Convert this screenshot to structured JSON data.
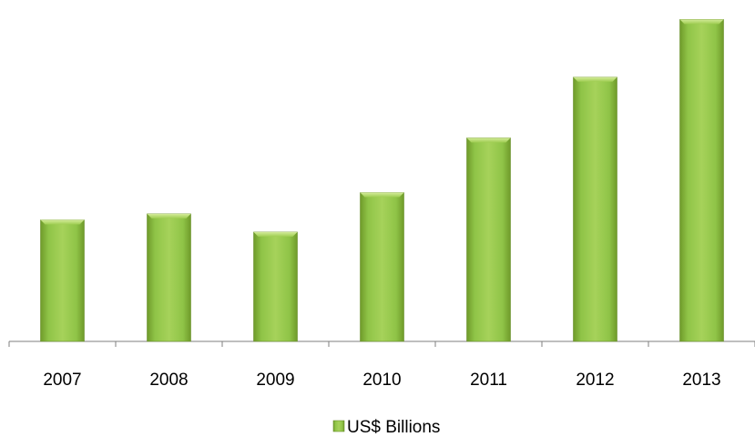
{
  "chart_data": {
    "type": "bar",
    "categories": [
      "2007",
      "2008",
      "2009",
      "2010",
      "2011",
      "2012",
      "2013"
    ],
    "series": [
      {
        "name": "US$ Billions",
        "values": [
          40,
          42,
          36,
          49,
          67,
          87,
          106
        ],
        "color": "#8dc63f"
      }
    ],
    "ylim": [
      0,
      110
    ],
    "grid": false,
    "legend_position": "bottom"
  }
}
